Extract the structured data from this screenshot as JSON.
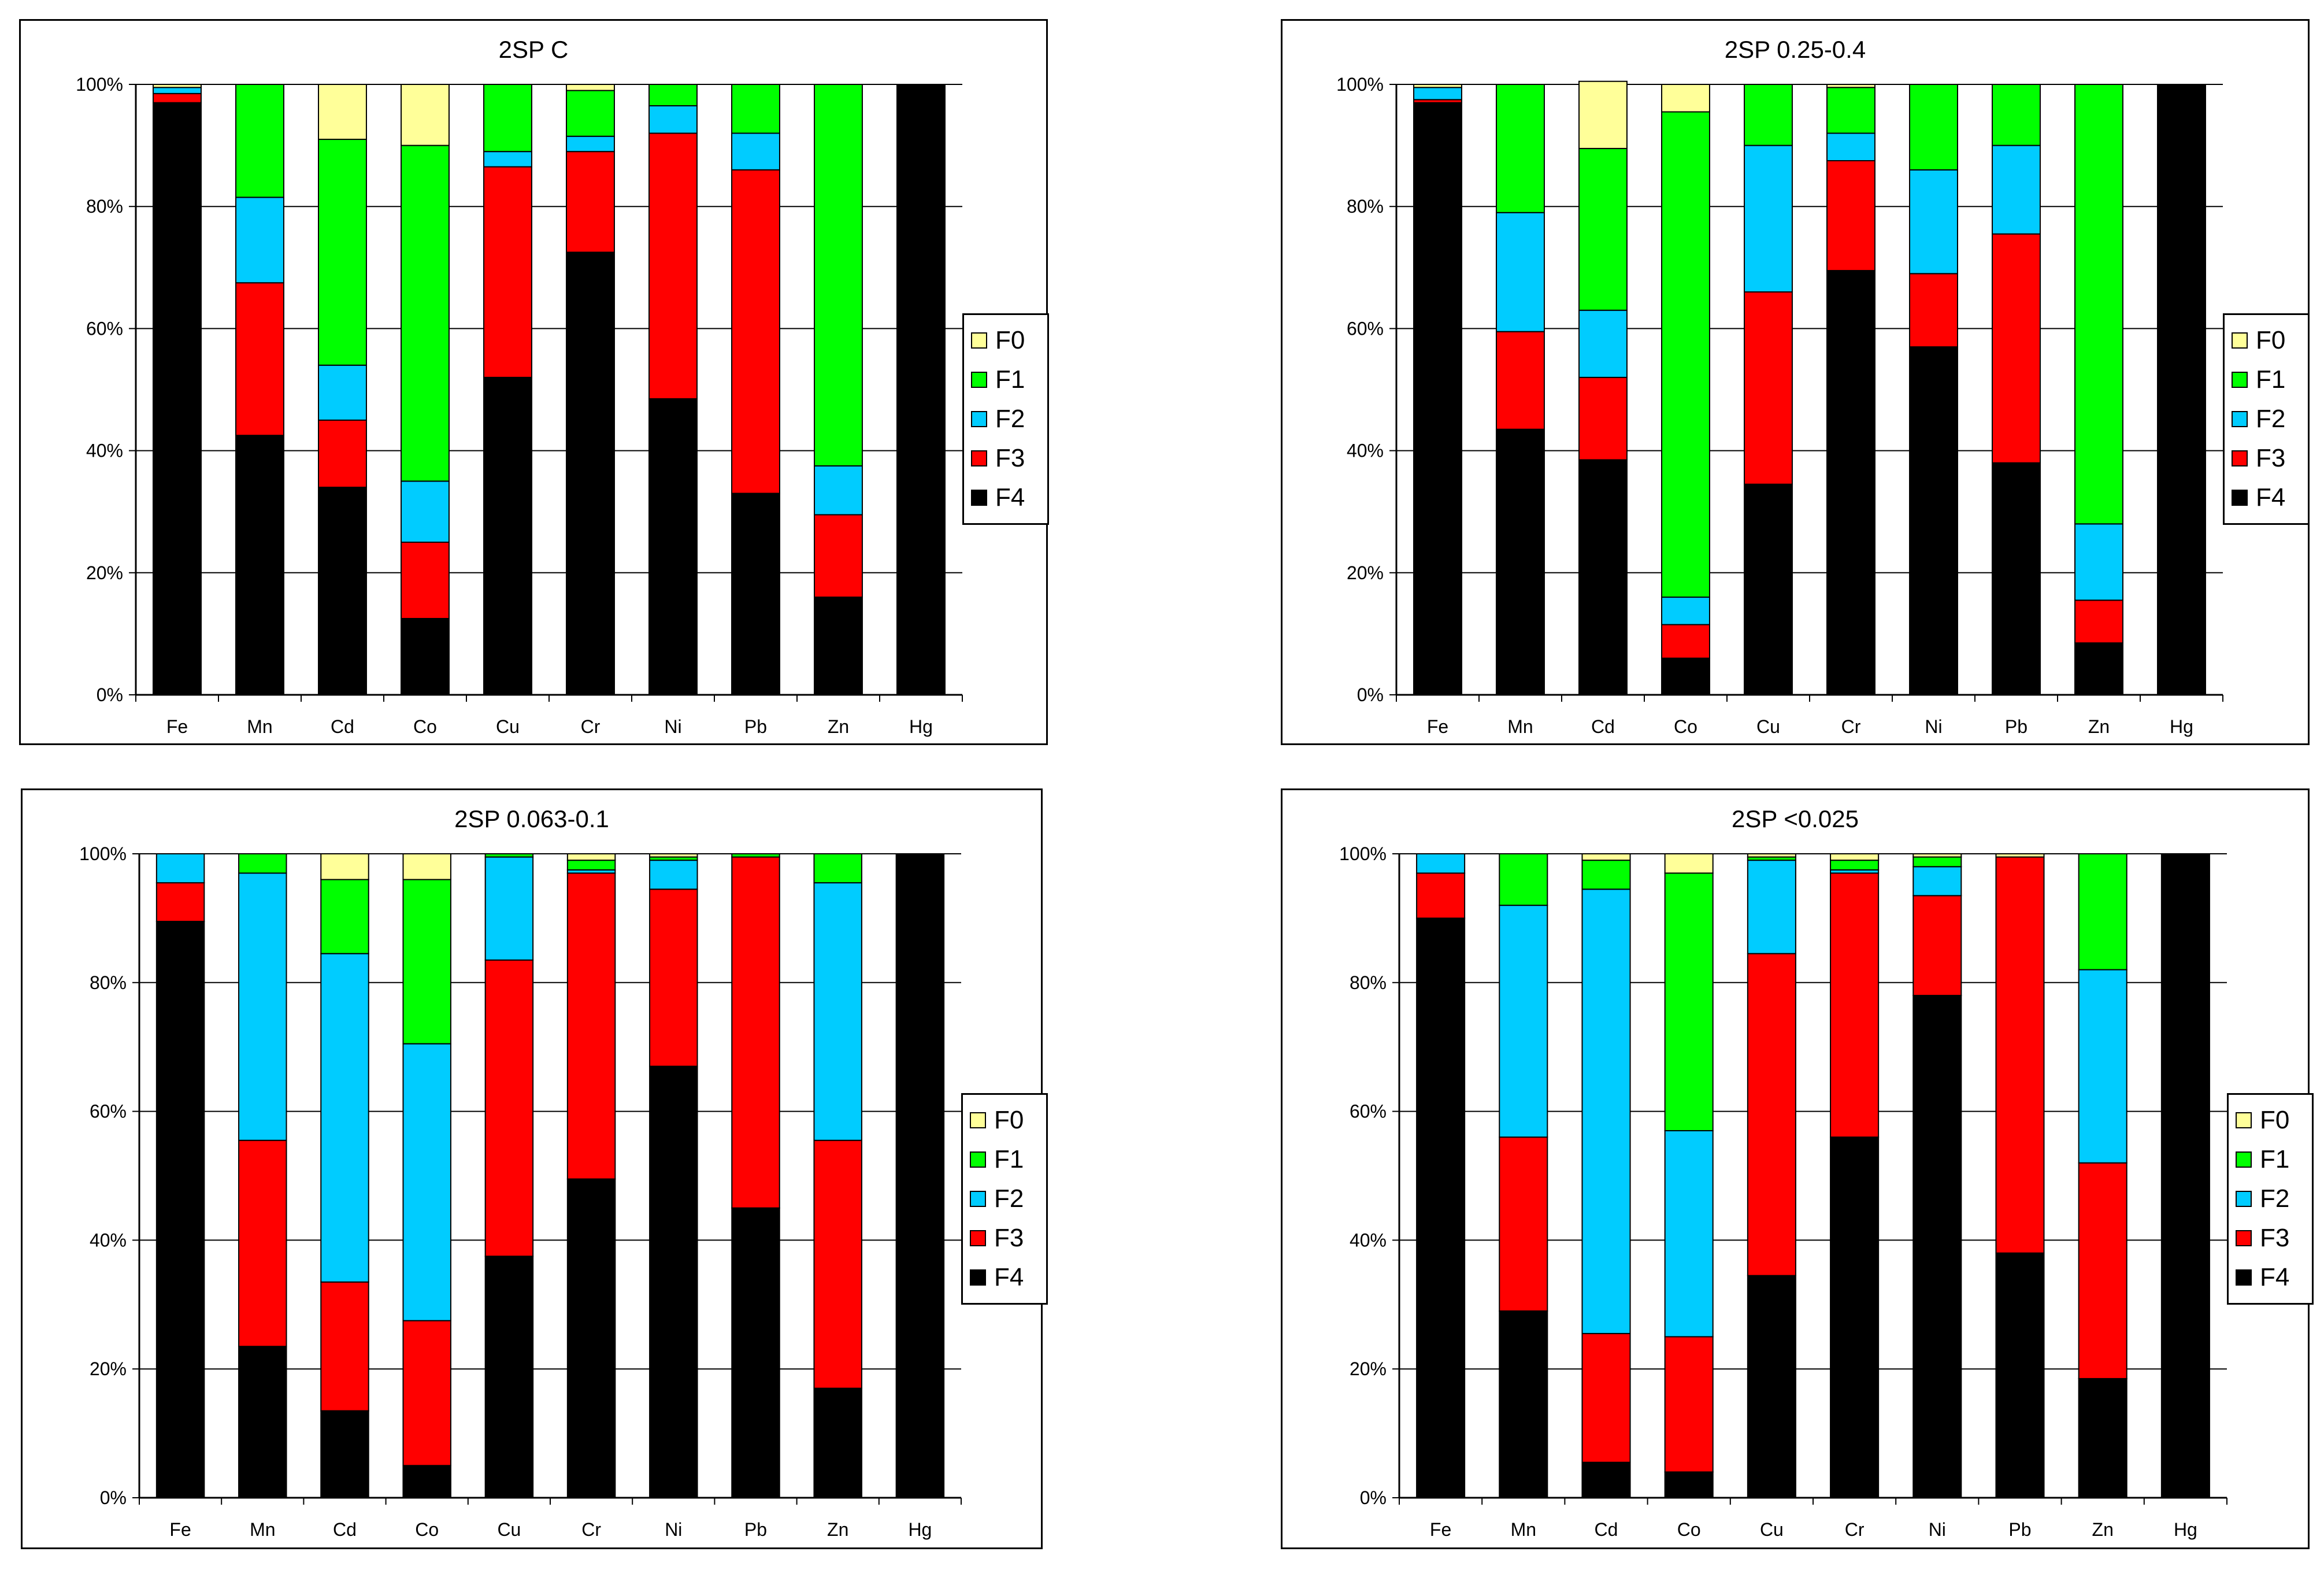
{
  "fractions": [
    "F0",
    "F1",
    "F2",
    "F3",
    "F4"
  ],
  "colors": {
    "F0": "#ffff99",
    "F1": "#00ff00",
    "F2": "#00ccff",
    "F3": "#ff0000",
    "F4": "#000000"
  },
  "chart_data": [
    {
      "type": "bar",
      "stacked": true,
      "title": "2SP C",
      "categories": [
        "Fe",
        "Mn",
        "Cd",
        "Co",
        "Cu",
        "Cr",
        "Ni",
        "Pb",
        "Zn",
        "Hg"
      ],
      "yticks": [
        "0%",
        "20%",
        "40%",
        "60%",
        "80%",
        "100%"
      ],
      "ylim": [
        0,
        100
      ],
      "legend": [
        "F0",
        "F1",
        "F2",
        "F3",
        "F4"
      ],
      "series": [
        {
          "name": "F4",
          "values": [
            97,
            42.5,
            34,
            12.5,
            52,
            72.5,
            48.5,
            33,
            16,
            100
          ]
        },
        {
          "name": "F3",
          "values": [
            1.5,
            25,
            11,
            12.5,
            34.5,
            16.5,
            43.5,
            53,
            13.5,
            0
          ]
        },
        {
          "name": "F2",
          "values": [
            1,
            14,
            9,
            10,
            2.5,
            2.5,
            4.5,
            6,
            8,
            0
          ]
        },
        {
          "name": "F1",
          "values": [
            0,
            18.5,
            37,
            55,
            11,
            7.5,
            3.5,
            8,
            62.5,
            0
          ]
        },
        {
          "name": "F0",
          "values": [
            0.5,
            0,
            9,
            10,
            0,
            1,
            0,
            0,
            0,
            0
          ]
        }
      ]
    },
    {
      "type": "bar",
      "stacked": true,
      "title": "2SP 0.25-0.4",
      "categories": [
        "Fe",
        "Mn",
        "Cd",
        "Co",
        "Cu",
        "Cr",
        "Ni",
        "Pb",
        "Zn",
        "Hg"
      ],
      "yticks": [
        "0%",
        "20%",
        "40%",
        "60%",
        "80%",
        "100%"
      ],
      "ylim": [
        0,
        100
      ],
      "legend": [
        "F0",
        "F1",
        "F2",
        "F3",
        "F4"
      ],
      "series": [
        {
          "name": "F4",
          "values": [
            97,
            43.5,
            38.5,
            6,
            34.5,
            69.5,
            57,
            38,
            8.5,
            100
          ]
        },
        {
          "name": "F3",
          "values": [
            0.5,
            16,
            13.5,
            5.5,
            31.5,
            18,
            12,
            37.5,
            7,
            0
          ]
        },
        {
          "name": "F2",
          "values": [
            2,
            19.5,
            11,
            4.5,
            24,
            4.5,
            17,
            14.5,
            12.5,
            0
          ]
        },
        {
          "name": "F1",
          "values": [
            0,
            21,
            26.5,
            79.5,
            10,
            7.5,
            14,
            10,
            72,
            0
          ]
        },
        {
          "name": "F0",
          "values": [
            0.5,
            0,
            11,
            4.5,
            0,
            0.5,
            0,
            0,
            0,
            0
          ]
        }
      ]
    },
    {
      "type": "bar",
      "stacked": true,
      "title": "2SP 0.063-0.1",
      "categories": [
        "Fe",
        "Mn",
        "Cd",
        "Co",
        "Cu",
        "Cr",
        "Ni",
        "Pb",
        "Zn",
        "Hg"
      ],
      "yticks": [
        "0%",
        "20%",
        "40%",
        "60%",
        "80%",
        "100%"
      ],
      "ylim": [
        0,
        100
      ],
      "legend": [
        "F0",
        "F1",
        "F2",
        "F3",
        "F4"
      ],
      "series": [
        {
          "name": "F4",
          "values": [
            89.5,
            23.5,
            13.5,
            5,
            37.5,
            49.5,
            67,
            45,
            17,
            100
          ]
        },
        {
          "name": "F3",
          "values": [
            6,
            32,
            20,
            22.5,
            46,
            47.5,
            27.5,
            54.5,
            38.5,
            0
          ]
        },
        {
          "name": "F2",
          "values": [
            4.5,
            41.5,
            51,
            43,
            16,
            0.5,
            4.5,
            0,
            40,
            0
          ]
        },
        {
          "name": "F1",
          "values": [
            0,
            3,
            11.5,
            25.5,
            0.5,
            1.5,
            0.5,
            0.5,
            4.5,
            0
          ]
        },
        {
          "name": "F0",
          "values": [
            0,
            0,
            4,
            4,
            0,
            1,
            0.5,
            0,
            0,
            0
          ]
        }
      ]
    },
    {
      "type": "bar",
      "stacked": true,
      "title": "2SP <0.025",
      "categories": [
        "Fe",
        "Mn",
        "Cd",
        "Co",
        "Cu",
        "Cr",
        "Ni",
        "Pb",
        "Zn",
        "Hg"
      ],
      "yticks": [
        "0%",
        "20%",
        "40%",
        "60%",
        "80%",
        "100%"
      ],
      "ylim": [
        0,
        100
      ],
      "legend": [
        "F0",
        "F1",
        "F2",
        "F3",
        "F4"
      ],
      "series": [
        {
          "name": "F4",
          "values": [
            90,
            29,
            5.5,
            4,
            34.5,
            56,
            78,
            38,
            18.5,
            100
          ]
        },
        {
          "name": "F3",
          "values": [
            7,
            27,
            20,
            21,
            50,
            41,
            15.5,
            61.5,
            33.5,
            0
          ]
        },
        {
          "name": "F2",
          "values": [
            3,
            36,
            69,
            32,
            14.5,
            0.5,
            4.5,
            0,
            30,
            0
          ]
        },
        {
          "name": "F1",
          "values": [
            0,
            8,
            4.5,
            40,
            0.5,
            1.5,
            1.5,
            0,
            18,
            0
          ]
        },
        {
          "name": "F0",
          "values": [
            0,
            0,
            1,
            3,
            0.5,
            1,
            0.5,
            0.5,
            0,
            0
          ]
        }
      ]
    }
  ]
}
